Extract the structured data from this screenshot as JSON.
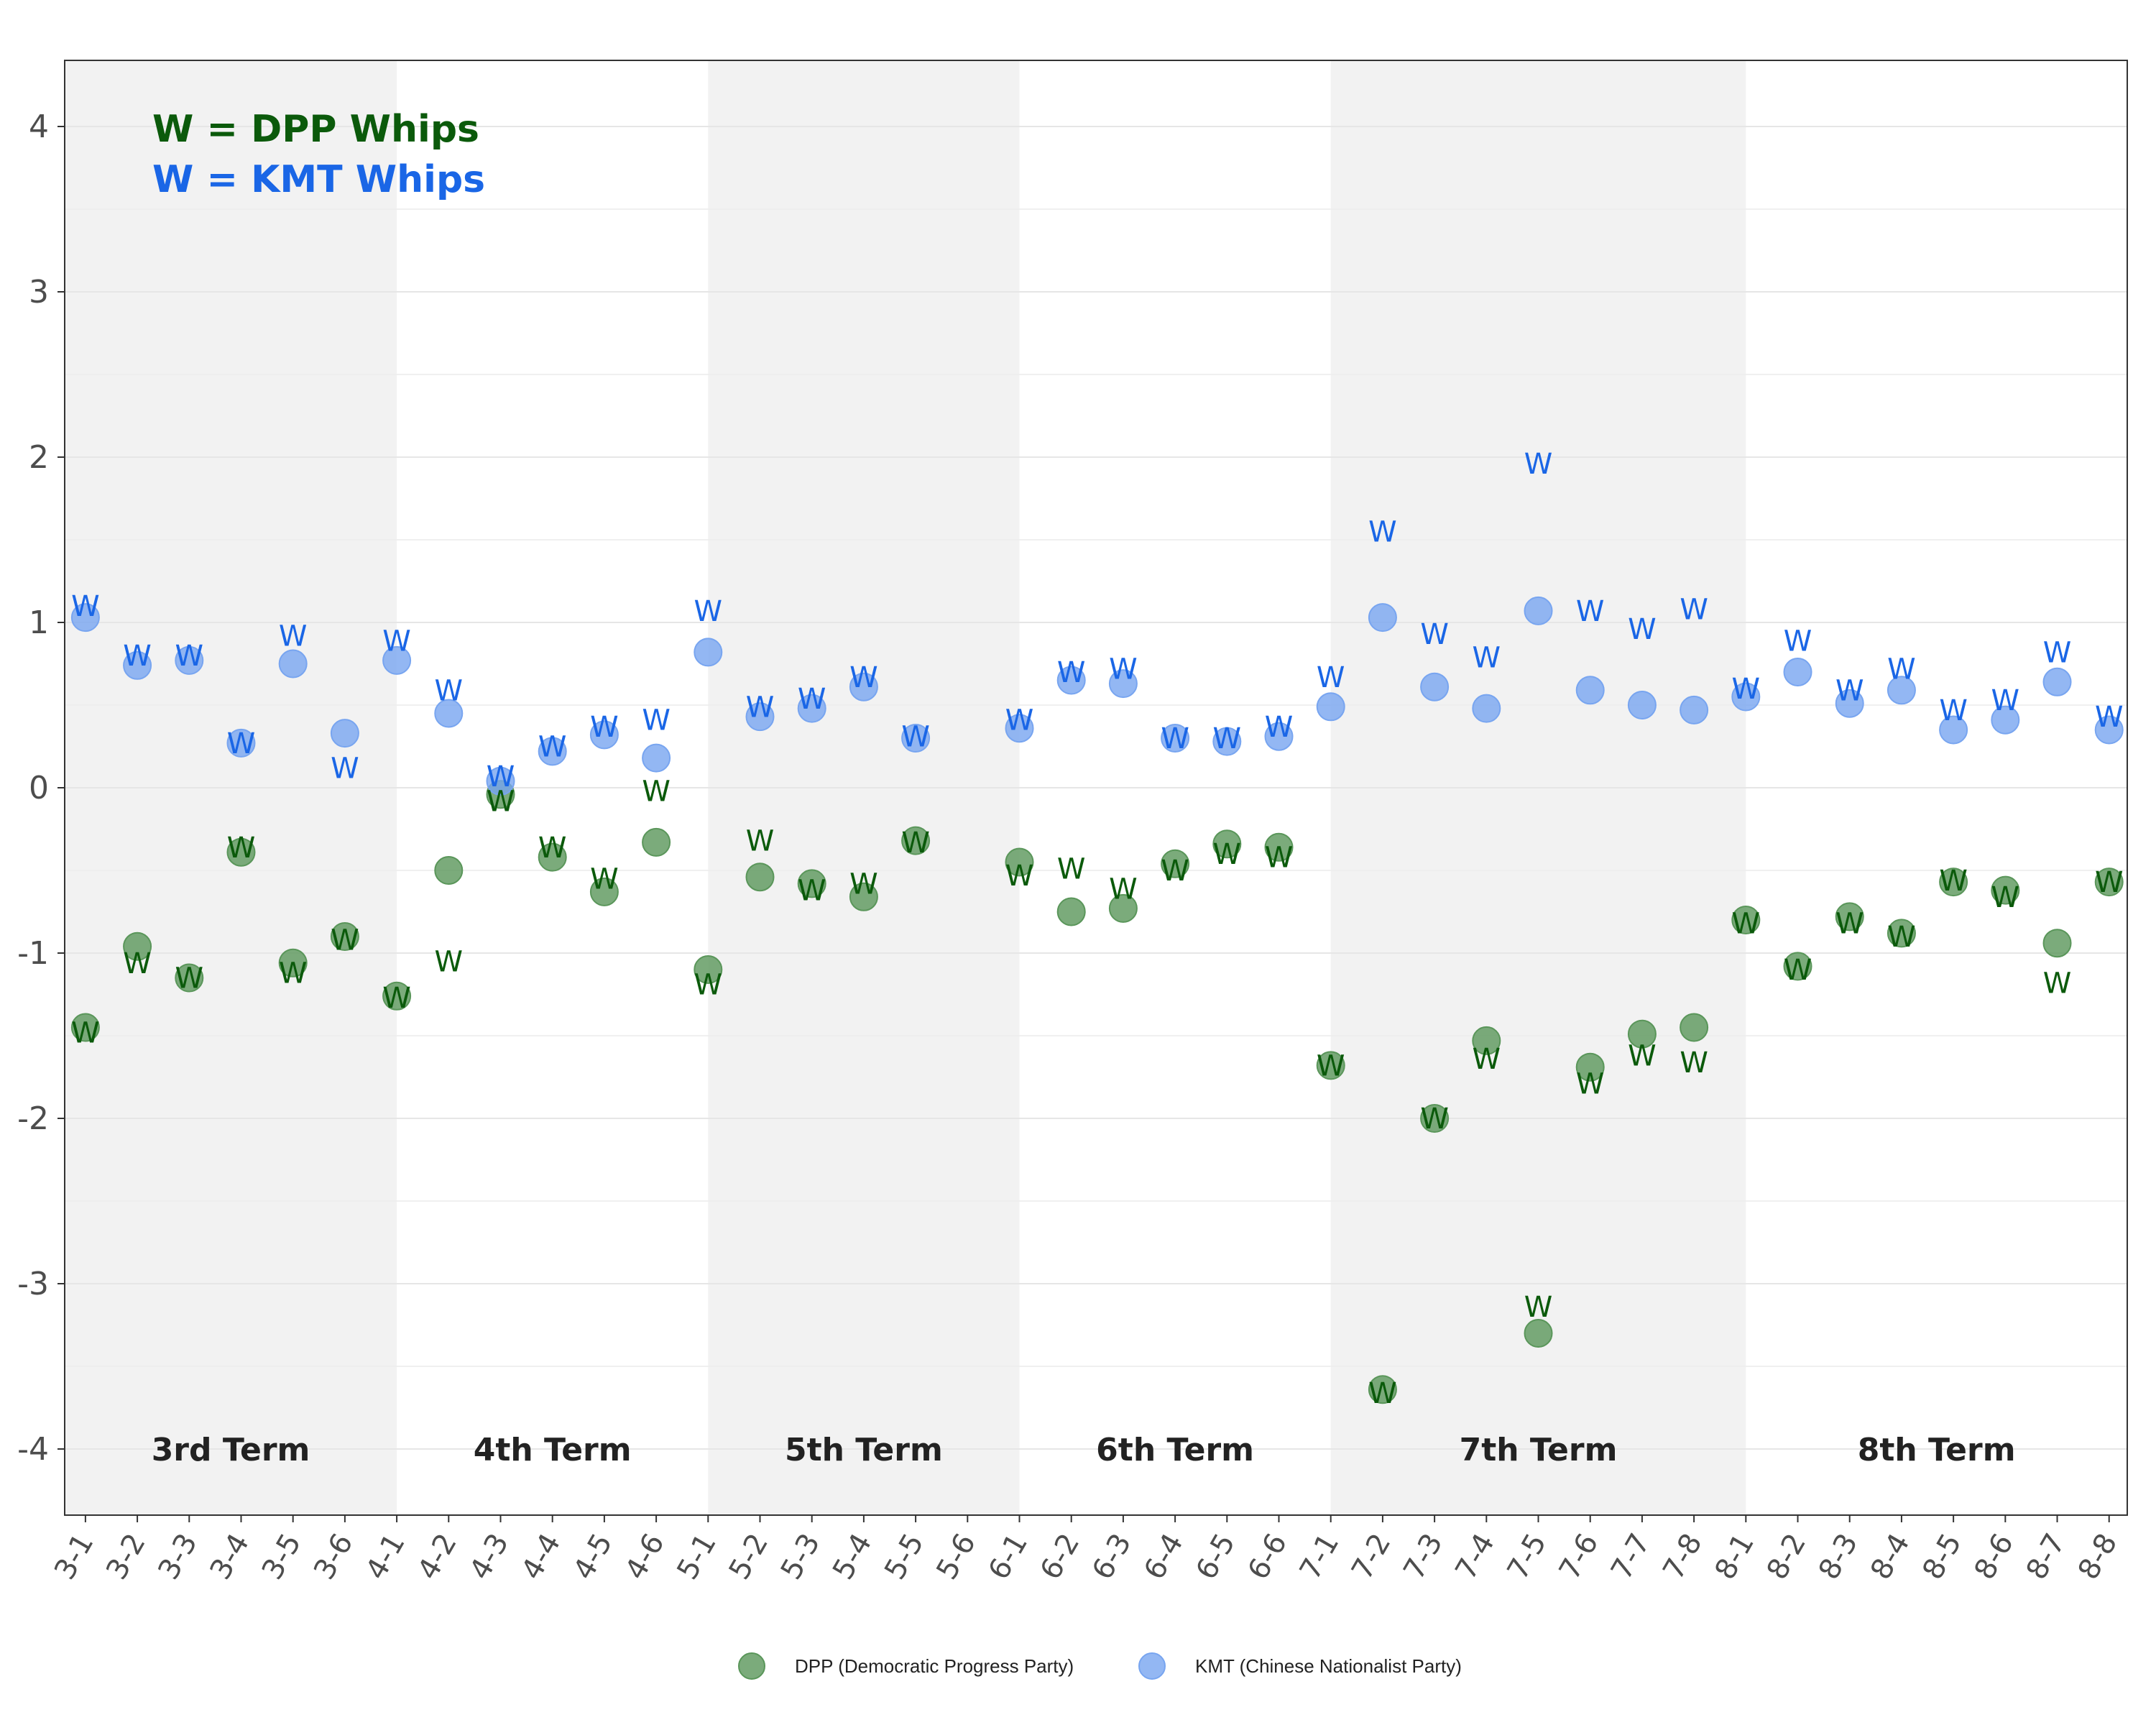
{
  "chart_data": {
    "type": "scatter",
    "title": "",
    "xlabel": "",
    "ylabel": "",
    "ylim": [
      -4.4,
      4.4
    ],
    "y_ticks": [
      "-4",
      "-3",
      "-2",
      "-1",
      "0",
      "1",
      "2",
      "3",
      "4"
    ],
    "grid": true,
    "legend_position": "bottom",
    "categories": [
      "3-1",
      "3-2",
      "3-3",
      "3-4",
      "3-5",
      "3-6",
      "4-1",
      "4-2",
      "4-3",
      "4-4",
      "4-5",
      "4-6",
      "5-1",
      "5-2",
      "5-3",
      "5-4",
      "5-5",
      "5-6",
      "6-1",
      "6-2",
      "6-3",
      "6-4",
      "6-5",
      "6-6",
      "7-1",
      "7-2",
      "7-3",
      "7-4",
      "7-5",
      "7-6",
      "7-7",
      "7-8",
      "8-1",
      "8-2",
      "8-3",
      "8-4",
      "8-5",
      "8-6",
      "8-7",
      "8-8"
    ],
    "terms": [
      {
        "label": "3rd Term",
        "from": "3-1",
        "to": "4-1",
        "shaded": true
      },
      {
        "label": "4th Term",
        "from": "4-1",
        "to": "5-1",
        "shaded": false
      },
      {
        "label": "5th Term",
        "from": "5-1",
        "to": "6-1",
        "shaded": true
      },
      {
        "label": "6th Term",
        "from": "6-1",
        "to": "7-1",
        "shaded": false
      },
      {
        "label": "7th Term",
        "from": "7-1",
        "to": "8-1",
        "shaded": true
      },
      {
        "label": "8th Term",
        "from": "8-1",
        "to": "8-8",
        "shaded": false
      }
    ],
    "whip_symbol": "W",
    "whip_key": [
      {
        "symbol": "W",
        "text": "= DPP Whips",
        "color": "#0b5a0b"
      },
      {
        "symbol": "W",
        "text": "= KMT Whips",
        "color": "#1a66e6"
      }
    ],
    "series": [
      {
        "name": "DPP (Democratic Progress Party)",
        "color": "#5a965a",
        "whip_color": "#0b5a0b",
        "values": [
          -1.45,
          -0.96,
          -1.15,
          -0.39,
          -1.06,
          -0.9,
          -1.26,
          -0.5,
          -0.04,
          -0.42,
          -0.63,
          -0.33,
          -1.1,
          -0.54,
          -0.58,
          -0.66,
          -0.32,
          null,
          -0.45,
          -0.75,
          -0.73,
          -0.46,
          -0.34,
          -0.36,
          -1.68,
          -3.64,
          -2.0,
          -1.53,
          -3.3,
          -1.69,
          -1.49,
          -1.45,
          -0.8,
          -1.08,
          -0.78,
          -0.88,
          -0.57,
          -0.62,
          -0.94,
          -0.57
        ],
        "whips": [
          {
            "x": "3-1",
            "y": -1.48
          },
          {
            "x": "3-2",
            "y": -1.06
          },
          {
            "x": "3-3",
            "y": -1.15
          },
          {
            "x": "3-4",
            "y": -0.36
          },
          {
            "x": "3-5",
            "y": -1.12
          },
          {
            "x": "3-6",
            "y": -0.92
          },
          {
            "x": "4-1",
            "y": -1.27
          },
          {
            "x": "4-2",
            "y": -1.05
          },
          {
            "x": "4-3",
            "y": -0.08
          },
          {
            "x": "4-4",
            "y": -0.36
          },
          {
            "x": "4-5",
            "y": -0.55
          },
          {
            "x": "4-6",
            "y": -0.02
          },
          {
            "x": "5-1",
            "y": -1.19
          },
          {
            "x": "5-2",
            "y": -0.32
          },
          {
            "x": "5-3",
            "y": -0.62
          },
          {
            "x": "5-4",
            "y": -0.58
          },
          {
            "x": "5-5",
            "y": -0.33
          },
          {
            "x": "6-1",
            "y": -0.53
          },
          {
            "x": "6-2",
            "y": -0.49
          },
          {
            "x": "6-3",
            "y": -0.61
          },
          {
            "x": "6-4",
            "y": -0.5
          },
          {
            "x": "6-5",
            "y": -0.4
          },
          {
            "x": "6-6",
            "y": -0.42
          },
          {
            "x": "7-1",
            "y": -1.68
          },
          {
            "x": "7-2",
            "y": -3.66
          },
          {
            "x": "7-3",
            "y": -2.0
          },
          {
            "x": "7-4",
            "y": -1.64
          },
          {
            "x": "7-5",
            "y": -3.14
          },
          {
            "x": "7-6",
            "y": -1.79
          },
          {
            "x": "7-7",
            "y": -1.62
          },
          {
            "x": "7-8",
            "y": -1.66
          },
          {
            "x": "8-1",
            "y": -0.82
          },
          {
            "x": "8-2",
            "y": -1.1
          },
          {
            "x": "8-3",
            "y": -0.82
          },
          {
            "x": "8-4",
            "y": -0.9
          },
          {
            "x": "8-5",
            "y": -0.56
          },
          {
            "x": "8-6",
            "y": -0.66
          },
          {
            "x": "8-7",
            "y": -1.18
          },
          {
            "x": "8-8",
            "y": -0.57
          }
        ]
      },
      {
        "name": "KMT (Chinese Nationalist Party)",
        "color": "#78a5f0",
        "whip_color": "#1a66e6",
        "values": [
          1.03,
          0.74,
          0.77,
          0.27,
          0.75,
          0.33,
          0.77,
          0.45,
          0.04,
          0.22,
          0.32,
          0.18,
          0.82,
          0.43,
          0.48,
          0.61,
          0.3,
          null,
          0.36,
          0.65,
          0.63,
          0.3,
          0.28,
          0.31,
          0.49,
          1.03,
          0.61,
          0.48,
          1.07,
          0.59,
          0.5,
          0.47,
          0.55,
          0.7,
          0.51,
          0.59,
          0.35,
          0.41,
          0.64,
          0.35
        ],
        "whips": [
          {
            "x": "3-1",
            "y": 1.1
          },
          {
            "x": "3-2",
            "y": 0.8
          },
          {
            "x": "3-3",
            "y": 0.8
          },
          {
            "x": "3-4",
            "y": 0.27
          },
          {
            "x": "3-5",
            "y": 0.92
          },
          {
            "x": "3-6",
            "y": 0.12
          },
          {
            "x": "4-1",
            "y": 0.89
          },
          {
            "x": "4-2",
            "y": 0.59
          },
          {
            "x": "4-3",
            "y": 0.07
          },
          {
            "x": "4-4",
            "y": 0.25
          },
          {
            "x": "4-5",
            "y": 0.37
          },
          {
            "x": "4-6",
            "y": 0.41
          },
          {
            "x": "5-1",
            "y": 1.07
          },
          {
            "x": "5-2",
            "y": 0.49
          },
          {
            "x": "5-3",
            "y": 0.54
          },
          {
            "x": "5-4",
            "y": 0.67
          },
          {
            "x": "5-5",
            "y": 0.31
          },
          {
            "x": "6-1",
            "y": 0.41
          },
          {
            "x": "6-2",
            "y": 0.7
          },
          {
            "x": "6-3",
            "y": 0.72
          },
          {
            "x": "6-4",
            "y": 0.3
          },
          {
            "x": "6-5",
            "y": 0.3
          },
          {
            "x": "6-6",
            "y": 0.37
          },
          {
            "x": "7-1",
            "y": 0.67
          },
          {
            "x": "7-2",
            "y": 1.55
          },
          {
            "x": "7-3",
            "y": 0.93
          },
          {
            "x": "7-4",
            "y": 0.79
          },
          {
            "x": "7-5",
            "y": 1.96
          },
          {
            "x": "7-6",
            "y": 1.07
          },
          {
            "x": "7-7",
            "y": 0.96
          },
          {
            "x": "7-8",
            "y": 1.08
          },
          {
            "x": "8-1",
            "y": 0.6
          },
          {
            "x": "8-2",
            "y": 0.89
          },
          {
            "x": "8-3",
            "y": 0.59
          },
          {
            "x": "8-4",
            "y": 0.72
          },
          {
            "x": "8-5",
            "y": 0.47
          },
          {
            "x": "8-6",
            "y": 0.53
          },
          {
            "x": "8-7",
            "y": 0.82
          },
          {
            "x": "8-8",
            "y": 0.43
          }
        ]
      }
    ]
  }
}
